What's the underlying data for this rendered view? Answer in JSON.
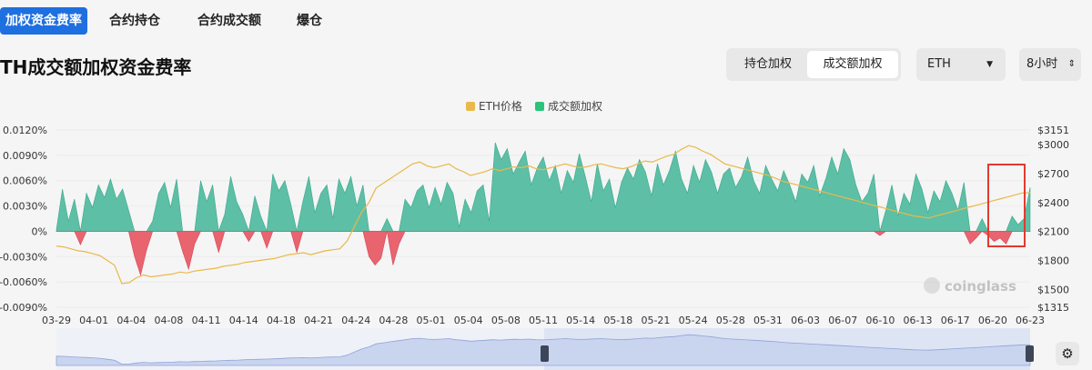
{
  "tabs": [
    {
      "label": "加权资金费率",
      "active": true
    },
    {
      "label": "合约持仓",
      "active": false
    },
    {
      "label": "合约成交额",
      "active": false
    },
    {
      "label": "爆仓",
      "active": false
    }
  ],
  "page_title": "TH成交额加权资金费率",
  "segment": [
    {
      "label": "持仓加权",
      "active": false
    },
    {
      "label": "成交额加权",
      "active": true
    }
  ],
  "coin_select": {
    "value": "ETH"
  },
  "interval_select": {
    "value": "8小时"
  },
  "watermark": "coinglass",
  "colors": {
    "accent": "#1e6fe0",
    "positive": "#5dbfa6",
    "negative": "#e8646f",
    "price": "#e9b949",
    "highlight": "#e23a2f"
  },
  "chart_data": {
    "type": "area",
    "legend": [
      "ETH价格",
      "成交额加权"
    ],
    "left_ticks": [
      "0.0120%",
      "0.0090%",
      "0.0060%",
      "0.0030%",
      "0%",
      "-0.0030%",
      "-0.0060%",
      "-0.0090%"
    ],
    "right_ticks": [
      "$3151",
      "$3000",
      "$2700",
      "$2400",
      "$2100",
      "$1800",
      "$1500",
      "$1315"
    ],
    "x_ticks": [
      "03-29",
      "04-01",
      "04-04",
      "04-08",
      "04-11",
      "04-14",
      "04-18",
      "04-21",
      "04-24",
      "04-28",
      "05-01",
      "05-04",
      "05-08",
      "05-11",
      "05-14",
      "05-18",
      "05-21",
      "05-24",
      "05-28",
      "05-31",
      "06-03",
      "06-07",
      "06-10",
      "06-13",
      "06-17",
      "06-20",
      "06-23"
    ],
    "ylim_left": [
      -0.009,
      0.012
    ],
    "ylim_right": [
      1315,
      3151
    ],
    "funding_rate": [
      0.0002,
      0.005,
      0.0012,
      0.0038,
      -0.0016,
      0.0045,
      0.0028,
      0.0055,
      0.004,
      0.0062,
      0.0038,
      0.005,
      0.0025,
      -0.003,
      -0.0052,
      -0.0022,
      0.0012,
      0.0045,
      0.0058,
      0.0028,
      0.0062,
      -0.0024,
      -0.0045,
      -0.0015,
      0.006,
      0.0035,
      0.0055,
      -0.0025,
      0.002,
      0.0065,
      0.0035,
      0.002,
      -0.0012,
      0.0042,
      0.0018,
      -0.002,
      0.0068,
      0.0048,
      0.006,
      0.0032,
      -0.0025,
      0.0035,
      0.0065,
      0.0022,
      0.0045,
      0.0055,
      0.0015,
      0.0062,
      0.0045,
      0.0065,
      0.003,
      0.0055,
      -0.003,
      -0.004,
      -0.0032,
      0.0015,
      -0.004,
      -0.0015,
      0.0038,
      0.0028,
      0.0048,
      0.0055,
      0.0028,
      0.0052,
      0.0032,
      0.0058,
      0.0045,
      0.0005,
      0.0038,
      0.0022,
      0.0048,
      0.0055,
      0.0012,
      0.0105,
      0.0085,
      0.0098,
      0.0068,
      0.0082,
      0.0095,
      0.0055,
      0.0075,
      0.0088,
      0.006,
      0.0078,
      0.0045,
      0.0072,
      0.0058,
      0.0092,
      0.0065,
      0.0035,
      0.008,
      0.0048,
      0.0062,
      0.0028,
      0.0058,
      0.0075,
      0.0062,
      0.0085,
      0.007,
      0.0042,
      0.008,
      0.0055,
      0.0072,
      0.0095,
      0.0062,
      0.0045,
      0.0078,
      0.0058,
      0.0085,
      0.007,
      0.0045,
      0.0068,
      0.0075,
      0.0052,
      0.0065,
      0.0088,
      0.006,
      0.0045,
      0.0078,
      0.0062,
      0.0048,
      0.0072,
      0.0055,
      0.0035,
      0.0068,
      0.0058,
      0.0078,
      0.0042,
      0.0062,
      0.0088,
      0.0068,
      0.0098,
      0.0085,
      0.0055,
      0.0035,
      0.0045,
      0.0068,
      -0.0005,
      0.0025,
      0.0055,
      0.0018,
      0.0045,
      0.0032,
      0.0068,
      0.005,
      0.0022,
      0.0048,
      0.0035,
      0.006,
      0.0045,
      0.0025,
      0.0058,
      -0.0015,
      -0.0008,
      0.0015,
      -0.0005,
      -0.0012,
      -0.0008,
      -0.0015,
      0.0018,
      0.0008,
      0.0015,
      0.0052
    ],
    "eth_price": [
      1950,
      1940,
      1920,
      1900,
      1890,
      1870,
      1850,
      1800,
      1750,
      1560,
      1570,
      1620,
      1650,
      1630,
      1640,
      1650,
      1660,
      1680,
      1670,
      1690,
      1700,
      1710,
      1720,
      1740,
      1750,
      1760,
      1780,
      1790,
      1800,
      1810,
      1820,
      1840,
      1860,
      1870,
      1880,
      1860,
      1880,
      1900,
      1910,
      1920,
      2000,
      2150,
      2300,
      2400,
      2550,
      2600,
      2650,
      2700,
      2750,
      2800,
      2820,
      2780,
      2760,
      2780,
      2800,
      2750,
      2720,
      2680,
      2700,
      2720,
      2750,
      2730,
      2750,
      2770,
      2760,
      2780,
      2750,
      2740,
      2760,
      2780,
      2800,
      2780,
      2760,
      2770,
      2790,
      2800,
      2780,
      2760,
      2750,
      2770,
      2800,
      2830,
      2820,
      2850,
      2880,
      2900,
      2950,
      2990,
      2970,
      2930,
      2900,
      2850,
      2800,
      2780,
      2760,
      2740,
      2720,
      2700,
      2680,
      2650,
      2620,
      2600,
      2580,
      2560,
      2540,
      2520,
      2500,
      2480,
      2460,
      2440,
      2420,
      2400,
      2380,
      2360,
      2340,
      2320,
      2300,
      2280,
      2260,
      2250,
      2240,
      2260,
      2280,
      2300,
      2320,
      2340,
      2360,
      2380,
      2400,
      2420,
      2440,
      2460,
      2480,
      2500,
      2500
    ]
  }
}
